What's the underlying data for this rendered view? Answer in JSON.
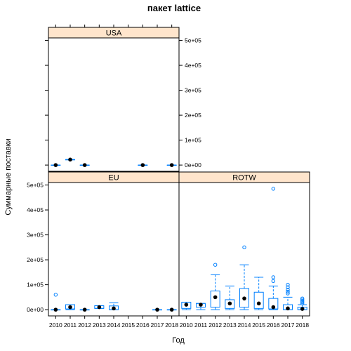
{
  "chart_data": {
    "type": "box",
    "title": "пакет lattice",
    "xlabel": "Год",
    "ylabel": "Суммарные поставки",
    "categories": [
      "2010",
      "2011",
      "2012",
      "2013",
      "2014",
      "2015",
      "2016",
      "2017",
      "2018"
    ],
    "ylim": [
      -25000,
      510000
    ],
    "yticks": [
      0,
      100000,
      200000,
      300000,
      400000,
      500000
    ],
    "ytick_labels": [
      "0e+00",
      "1e+05",
      "2e+05",
      "3e+05",
      "4e+05",
      "5e+05"
    ],
    "strip_color": "#ffe5cc",
    "box_color": "#0080ff",
    "median_color": "#000000",
    "panels": [
      {
        "name": "USA",
        "boxes": [
          {
            "cat": "2010",
            "min": 0,
            "q1": 0,
            "median": 0,
            "q3": 0,
            "max": 0,
            "outliers": []
          },
          {
            "cat": "2011",
            "min": 22000,
            "q1": 22000,
            "median": 22000,
            "q3": 22000,
            "max": 22000,
            "outliers": []
          },
          {
            "cat": "2012",
            "min": 0,
            "q1": 0,
            "median": 0,
            "q3": 0,
            "max": 0,
            "outliers": []
          },
          {
            "cat": "2016",
            "min": 0,
            "q1": 0,
            "median": 0,
            "q3": 0,
            "max": 0,
            "outliers": []
          },
          {
            "cat": "2018",
            "min": 0,
            "q1": 0,
            "median": 0,
            "q3": 0,
            "max": 0,
            "outliers": []
          }
        ]
      },
      {
        "name": "EU",
        "boxes": [
          {
            "cat": "2010",
            "min": 0,
            "q1": 0,
            "median": 0,
            "q3": 0,
            "max": 0,
            "outliers": [
              60000
            ]
          },
          {
            "cat": "2011",
            "min": 0,
            "q1": 3000,
            "median": 10000,
            "q3": 20000,
            "max": 20000,
            "outliers": []
          },
          {
            "cat": "2012",
            "min": 0,
            "q1": 0,
            "median": 0,
            "q3": 0,
            "max": 0,
            "outliers": []
          },
          {
            "cat": "2013",
            "min": 5000,
            "q1": 5000,
            "median": 10000,
            "q3": 16000,
            "max": 16000,
            "outliers": []
          },
          {
            "cat": "2014",
            "min": 0,
            "q1": 0,
            "median": 5000,
            "q3": 15000,
            "max": 28000,
            "outliers": []
          },
          {
            "cat": "2017",
            "min": 0,
            "q1": 0,
            "median": 0,
            "q3": 0,
            "max": 0,
            "outliers": []
          },
          {
            "cat": "2018",
            "min": 0,
            "q1": 0,
            "median": 0,
            "q3": 0,
            "max": 0,
            "outliers": []
          }
        ]
      },
      {
        "name": "ROTW",
        "boxes": [
          {
            "cat": "2010",
            "min": 0,
            "q1": 5000,
            "median": 20000,
            "q3": 30000,
            "max": 30000,
            "outliers": []
          },
          {
            "cat": "2011",
            "min": 0,
            "q1": 10000,
            "median": 20000,
            "q3": 25000,
            "max": 25000,
            "outliers": []
          },
          {
            "cat": "2012",
            "min": 0,
            "q1": 10000,
            "median": 50000,
            "q3": 75000,
            "max": 140000,
            "outliers": [
              180000
            ]
          },
          {
            "cat": "2013",
            "min": 0,
            "q1": 5000,
            "median": 25000,
            "q3": 40000,
            "max": 95000,
            "outliers": []
          },
          {
            "cat": "2014",
            "min": 0,
            "q1": 10000,
            "median": 45000,
            "q3": 85000,
            "max": 180000,
            "outliers": [
              250000
            ]
          },
          {
            "cat": "2015",
            "min": 0,
            "q1": 5000,
            "median": 25000,
            "q3": 70000,
            "max": 130000,
            "outliers": []
          },
          {
            "cat": "2016",
            "min": 0,
            "q1": 3000,
            "median": 10000,
            "q3": 45000,
            "max": 95000,
            "outliers": [
              115000,
              130000,
              485000
            ]
          },
          {
            "cat": "2017",
            "min": 0,
            "q1": 0,
            "median": 5000,
            "q3": 20000,
            "max": 50000,
            "outliers": [
              65000,
              72000,
              80000,
              90000,
              100000
            ]
          },
          {
            "cat": "2018",
            "min": 0,
            "q1": 0,
            "median": 3000,
            "q3": 10000,
            "max": 20000,
            "outliers": [
              25000,
              30000,
              35000,
              40000,
              45000
            ]
          }
        ]
      }
    ]
  }
}
